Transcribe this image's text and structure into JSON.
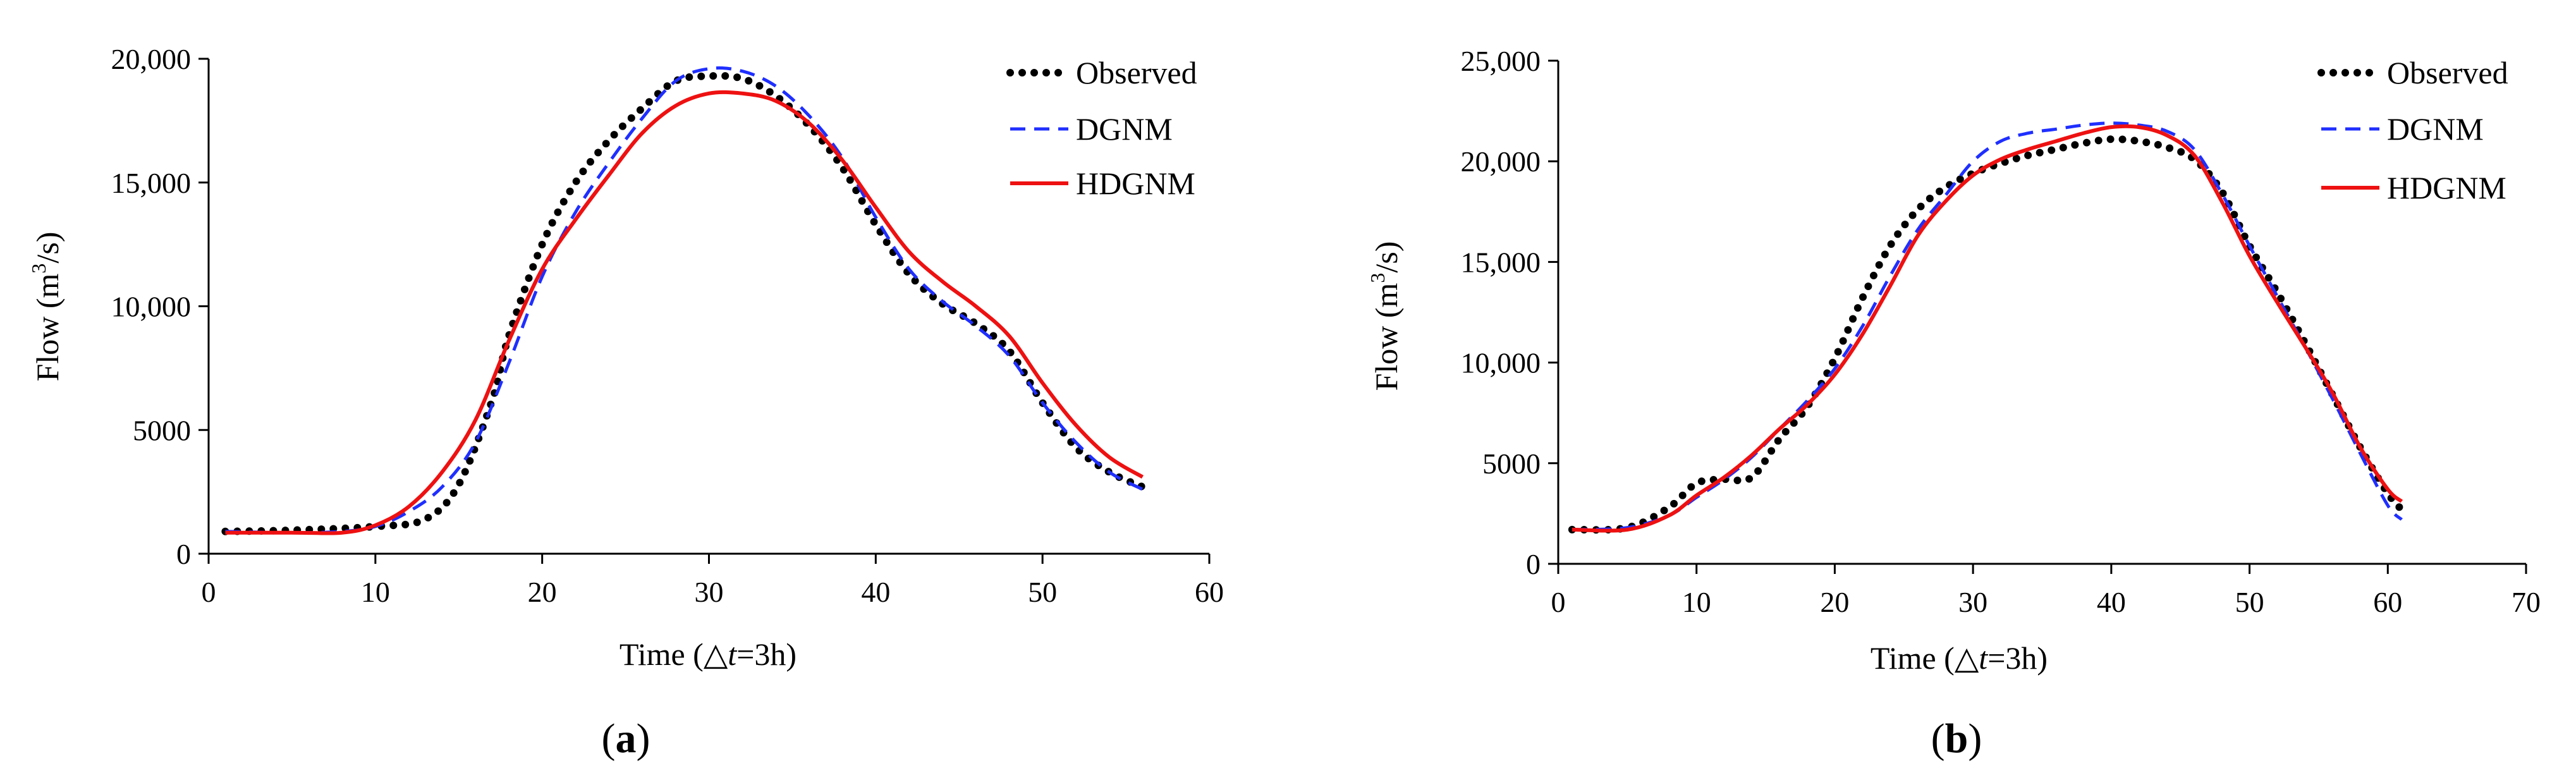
{
  "chart_data": [
    {
      "type": "line",
      "panel_label": "a",
      "title": "",
      "xlabel": "Time (△t=3h)",
      "xlabel_parts": {
        "pre": "Time (△",
        "italic": "t",
        "post": "=3h)"
      },
      "ylabel": "Flow (m3/s)",
      "ylabel_parts": {
        "pre": "Flow (m",
        "sup": "3",
        "post": "/s)"
      },
      "xlim": [
        0,
        60
      ],
      "ylim": [
        0,
        20000
      ],
      "xticks": [
        0,
        10,
        20,
        30,
        40,
        50,
        60
      ],
      "yticks": [
        0,
        5000,
        10000,
        15000,
        20000
      ],
      "ytick_labels": [
        "0",
        "5000",
        "10,000",
        "15,000",
        "20,000"
      ],
      "legend_position": "top-right",
      "series": [
        {
          "name": "Observed",
          "color": "#000000",
          "style": "dotted",
          "x": [
            1,
            5,
            10,
            13,
            15,
            17,
            18,
            20,
            22,
            24,
            26,
            28,
            30,
            32,
            34,
            36,
            38,
            40,
            42,
            44,
            46,
            48,
            50,
            52,
            54,
            56
          ],
          "y": [
            900,
            950,
            1100,
            1400,
            2800,
            6200,
            8800,
            12500,
            15000,
            16700,
            18000,
            19100,
            19300,
            19200,
            18500,
            17300,
            15600,
            13300,
            11300,
            10100,
            9300,
            8200,
            6100,
            4300,
            3300,
            2700
          ]
        },
        {
          "name": "DGNM",
          "color": "#1f2fff",
          "style": "dashed",
          "x": [
            1,
            5,
            8,
            10,
            12,
            14,
            16,
            18,
            20,
            22,
            24,
            26,
            28,
            30,
            32,
            34,
            36,
            38,
            40,
            42,
            44,
            46,
            48,
            50,
            52,
            54,
            56
          ],
          "y": [
            900,
            850,
            900,
            1100,
            1700,
            2700,
            4500,
            7700,
            11200,
            13800,
            15800,
            17600,
            19100,
            19600,
            19500,
            18900,
            17700,
            16000,
            13600,
            11500,
            10200,
            9200,
            8000,
            6100,
            4500,
            3300,
            2600
          ]
        },
        {
          "name": "HDGNM",
          "color": "#ee1111",
          "style": "solid",
          "x": [
            1,
            5,
            8,
            10,
            12,
            14,
            16,
            18,
            20,
            22,
            24,
            26,
            28,
            30,
            32,
            34,
            36,
            38,
            40,
            42,
            44,
            46,
            48,
            50,
            52,
            54,
            56
          ],
          "y": [
            850,
            850,
            850,
            1150,
            1900,
            3300,
            5400,
            8600,
            11500,
            13500,
            15300,
            17000,
            18100,
            18600,
            18600,
            18300,
            17400,
            15900,
            14000,
            12200,
            11000,
            10000,
            8800,
            6900,
            5200,
            3900,
            3100
          ]
        }
      ]
    },
    {
      "type": "line",
      "panel_label": "b",
      "title": "",
      "xlabel": "Time (△t=3h)",
      "xlabel_parts": {
        "pre": "Time (△",
        "italic": "t",
        "post": "=3h)"
      },
      "ylabel": "Flow (m3/s)",
      "ylabel_parts": {
        "pre": "Flow (m",
        "sup": "3",
        "post": "/s)"
      },
      "xlim": [
        0,
        70
      ],
      "ylim": [
        0,
        25000
      ],
      "xticks": [
        0,
        10,
        20,
        30,
        40,
        50,
        60,
        70
      ],
      "yticks": [
        0,
        5000,
        10000,
        15000,
        20000,
        25000
      ],
      "ytick_labels": [
        "0",
        "5000",
        "10,000",
        "15,000",
        "20,000",
        "25,000"
      ],
      "legend_position": "top-right",
      "series": [
        {
          "name": "Observed",
          "color": "#000000",
          "style": "dotted",
          "x": [
            1,
            5,
            8,
            10,
            12,
            14,
            16,
            18,
            20,
            22,
            24,
            26,
            28,
            30,
            32,
            34,
            36,
            38,
            40,
            42,
            44,
            46,
            48,
            50,
            52,
            54,
            56,
            58,
            60,
            61
          ],
          "y": [
            1700,
            1800,
            2800,
            4000,
            4200,
            4300,
            6200,
            7800,
            10200,
            13200,
            15800,
            17600,
            18700,
            19400,
            19900,
            20300,
            20600,
            20900,
            21100,
            21000,
            20700,
            20100,
            18500,
            15800,
            13500,
            11000,
            8400,
            5800,
            3500,
            2700
          ]
        },
        {
          "name": "DGNM",
          "color": "#1f2fff",
          "style": "dashed",
          "x": [
            1,
            5,
            8,
            10,
            12,
            14,
            16,
            18,
            20,
            22,
            24,
            26,
            28,
            30,
            32,
            34,
            36,
            38,
            40,
            42,
            44,
            46,
            48,
            50,
            52,
            54,
            56,
            58,
            60,
            61
          ],
          "y": [
            1700,
            1800,
            2400,
            3300,
            4200,
            5300,
            6700,
            8100,
            9700,
            11800,
            14300,
            16600,
            18300,
            20000,
            21000,
            21400,
            21600,
            21800,
            21900,
            21800,
            21500,
            20600,
            18400,
            15800,
            13300,
            10800,
            8200,
            5500,
            2900,
            2200
          ]
        },
        {
          "name": "HDGNM",
          "color": "#ee1111",
          "style": "solid",
          "x": [
            1,
            5,
            8,
            10,
            12,
            14,
            16,
            18,
            20,
            22,
            24,
            26,
            28,
            30,
            32,
            34,
            36,
            38,
            40,
            42,
            44,
            46,
            48,
            50,
            52,
            54,
            56,
            58,
            60,
            61
          ],
          "y": [
            1700,
            1700,
            2400,
            3400,
            4300,
            5400,
            6700,
            7900,
            9400,
            11400,
            13800,
            16300,
            18000,
            19300,
            20100,
            20600,
            21000,
            21400,
            21700,
            21700,
            21300,
            20300,
            18000,
            15300,
            13000,
            10800,
            8500,
            5800,
            3700,
            3100
          ]
        }
      ]
    }
  ]
}
